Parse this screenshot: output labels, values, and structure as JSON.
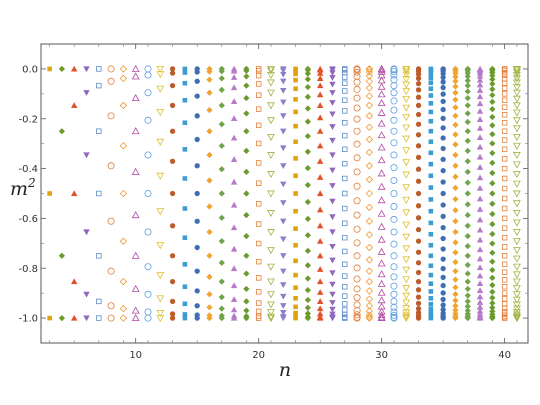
{
  "chart_data": {
    "type": "scatter",
    "title": "",
    "xlabel": "n",
    "ylabel_base": "m",
    "ylabel_exp": "2",
    "xlim": [
      2.3,
      41.9
    ],
    "ylim": [
      -1.1,
      0.1
    ],
    "xticks": [
      10,
      20,
      30,
      40
    ],
    "xtick_labels": [
      "10",
      "20",
      "30",
      "40"
    ],
    "yticks": [
      0.0,
      -0.2,
      -0.4,
      -0.6,
      -0.8,
      -1.0
    ],
    "ytick_labels": [
      "0.0",
      "-0.2",
      "-0.4",
      "-0.6",
      "-0.8",
      "-1.0"
    ],
    "grid": false,
    "n_min": 3,
    "n_max": 41,
    "description_of_series": "For each integer n from 3 to 41 there are n points; point k (k = 0..n-1) has y value = -sin^2(pi*k/(2*(n-1))) ranging from 0.0 at the top to -1.0 at the bottom.",
    "palette": [
      "#e0a30d",
      "#6e9a2a",
      "#e2512c",
      "#8e68bd",
      "#5b8bc6",
      "#e07b38",
      "#ec9933",
      "#b04aa0",
      "#5c9ee2",
      "#ddc02c",
      "#bb5c2b",
      "#3d9cd0",
      "#3f6eb6",
      "#f0a32f",
      "#70a44a",
      "#b57ac8",
      "#6a9a2f",
      "#e37e3a",
      "#a4b040",
      "#8a7fca"
    ],
    "marker_cycle": [
      "square-filled",
      "diamond-filled",
      "triangle-filled",
      "triangle-down-filled",
      "square-open",
      "circle-open",
      "diamond-open",
      "triangle-open",
      "circle-open",
      "triangle-down-open",
      "circle-filled",
      "square-filled",
      "circle-filled",
      "diamond-filled",
      "diamond-filled",
      "triangle-filled",
      "diamond-filled",
      "square-open",
      "triangle-down-open",
      "triangle-down-filled"
    ]
  }
}
